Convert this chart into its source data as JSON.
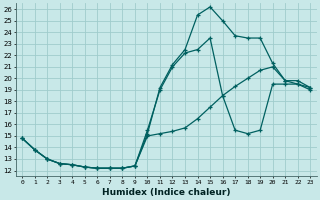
{
  "xlabel": "Humidex (Indice chaleur)",
  "xlim": [
    -0.5,
    23.5
  ],
  "ylim": [
    11.5,
    26.5
  ],
  "xticks": [
    0,
    1,
    2,
    3,
    4,
    5,
    6,
    7,
    8,
    9,
    10,
    11,
    12,
    13,
    14,
    15,
    16,
    17,
    18,
    19,
    20,
    21,
    22,
    23
  ],
  "yticks": [
    12,
    13,
    14,
    15,
    16,
    17,
    18,
    19,
    20,
    21,
    22,
    23,
    24,
    25,
    26
  ],
  "background_color": "#c8e8e8",
  "grid_color": "#a0cccc",
  "line_color": "#006060",
  "line1_x": [
    0,
    1,
    2,
    3,
    4,
    5,
    6,
    7,
    8,
    9,
    10,
    11,
    12,
    13,
    14,
    15,
    16,
    17,
    18,
    19,
    20,
    21,
    22,
    23
  ],
  "line1_y": [
    14.8,
    13.8,
    13.0,
    12.6,
    12.5,
    12.3,
    12.2,
    12.2,
    12.2,
    12.4,
    15.0,
    15.2,
    15.4,
    15.7,
    16.5,
    17.5,
    18.5,
    19.3,
    20.0,
    20.7,
    21.0,
    19.8,
    19.5,
    19.0
  ],
  "line2_x": [
    0,
    1,
    2,
    3,
    4,
    5,
    6,
    7,
    8,
    9,
    10,
    11,
    12,
    13,
    14,
    15,
    16,
    17,
    18,
    19,
    20,
    21,
    22,
    23
  ],
  "line2_y": [
    14.8,
    13.8,
    13.0,
    12.6,
    12.5,
    12.3,
    12.2,
    12.2,
    12.2,
    12.4,
    15.2,
    19.2,
    21.2,
    22.5,
    25.5,
    26.2,
    25.0,
    23.7,
    23.5,
    23.5,
    21.3,
    19.8,
    19.8,
    19.2
  ],
  "line3_x": [
    0,
    1,
    2,
    3,
    4,
    5,
    6,
    7,
    8,
    9,
    10,
    11,
    12,
    13,
    14,
    15,
    16,
    17,
    18,
    19,
    20,
    21,
    22,
    23
  ],
  "line3_y": [
    14.8,
    13.8,
    13.0,
    12.6,
    12.5,
    12.3,
    12.2,
    12.2,
    12.2,
    12.4,
    15.5,
    19.0,
    21.0,
    22.2,
    22.5,
    23.5,
    18.5,
    15.5,
    15.2,
    15.5,
    19.5,
    19.5,
    19.5,
    19.2
  ]
}
